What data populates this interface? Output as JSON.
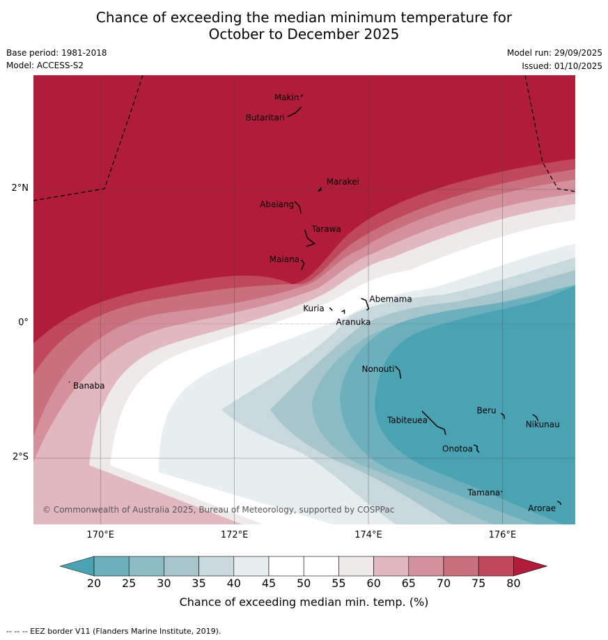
{
  "title": {
    "line1": "Chance of exceeding the median minimum temperature for",
    "line2": "October to December 2025"
  },
  "meta": {
    "base_period": "Base period: 1981-2018",
    "model": "Model: ACCESS-S2",
    "model_run": "Model run: 29/09/2025",
    "issued": "Issued: 01/10/2025"
  },
  "axes": {
    "x_ticks": [
      "170°E",
      "172°E",
      "174°E",
      "176°E"
    ],
    "y_ticks": [
      "2°N",
      "0°",
      "2°S"
    ]
  },
  "islands": [
    {
      "name": "Makin",
      "lon": 172.99,
      "lat": 3.38
    },
    {
      "name": "Butaritari",
      "lon": 172.79,
      "lat": 3.08
    },
    {
      "name": "Marakei",
      "lon": 173.29,
      "lat": 2.02
    },
    {
      "name": "Abaiang",
      "lon": 172.9,
      "lat": 1.82
    },
    {
      "name": "Tarawa",
      "lon": 173.05,
      "lat": 1.4
    },
    {
      "name": "Maiana",
      "lon": 173.0,
      "lat": 0.95
    },
    {
      "name": "Abemama",
      "lon": 173.89,
      "lat": 0.38
    },
    {
      "name": "Kuria",
      "lon": 173.42,
      "lat": 0.24
    },
    {
      "name": "Aranuka",
      "lon": 173.6,
      "lat": 0.18
    },
    {
      "name": "Banaba",
      "lon": 169.53,
      "lat": -0.86
    },
    {
      "name": "Nonouti",
      "lon": 174.4,
      "lat": -0.63
    },
    {
      "name": "Tabiteuea",
      "lon": 174.8,
      "lat": -1.3
    },
    {
      "name": "Beru",
      "lon": 175.98,
      "lat": -1.33
    },
    {
      "name": "Nikunau",
      "lon": 176.45,
      "lat": -1.35
    },
    {
      "name": "Onotoa",
      "lon": 175.57,
      "lat": -1.8
    },
    {
      "name": "Tamana",
      "lon": 175.98,
      "lat": -2.5
    },
    {
      "name": "Arorae",
      "lon": 176.82,
      "lat": -2.64
    }
  ],
  "copyright": "© Commonwealth of Australia 2025, Bureau of Meteorology, supported by COSPPac",
  "colorbar": {
    "label": "Chance of exceeding median min. temp. (%)",
    "ticks": [
      "20",
      "25",
      "30",
      "35",
      "40",
      "45",
      "50",
      "55",
      "60",
      "65",
      "70",
      "75",
      "80"
    ],
    "colors": [
      "#6cafbd",
      "#8bbcc6",
      "#a7c6cc",
      "#c9d8dc",
      "#e6eef0",
      "#ffffff",
      "#ffffff",
      "#eeeaea",
      "#e1b8bf",
      "#d4919c",
      "#ca6f7d",
      "#c0485c"
    ],
    "under_color": "#4aa3b3",
    "over_color": "#b01c3a"
  },
  "footer": "--  --  -- EEZ border V11 (Flanders Marine Institute, 2019)."
}
